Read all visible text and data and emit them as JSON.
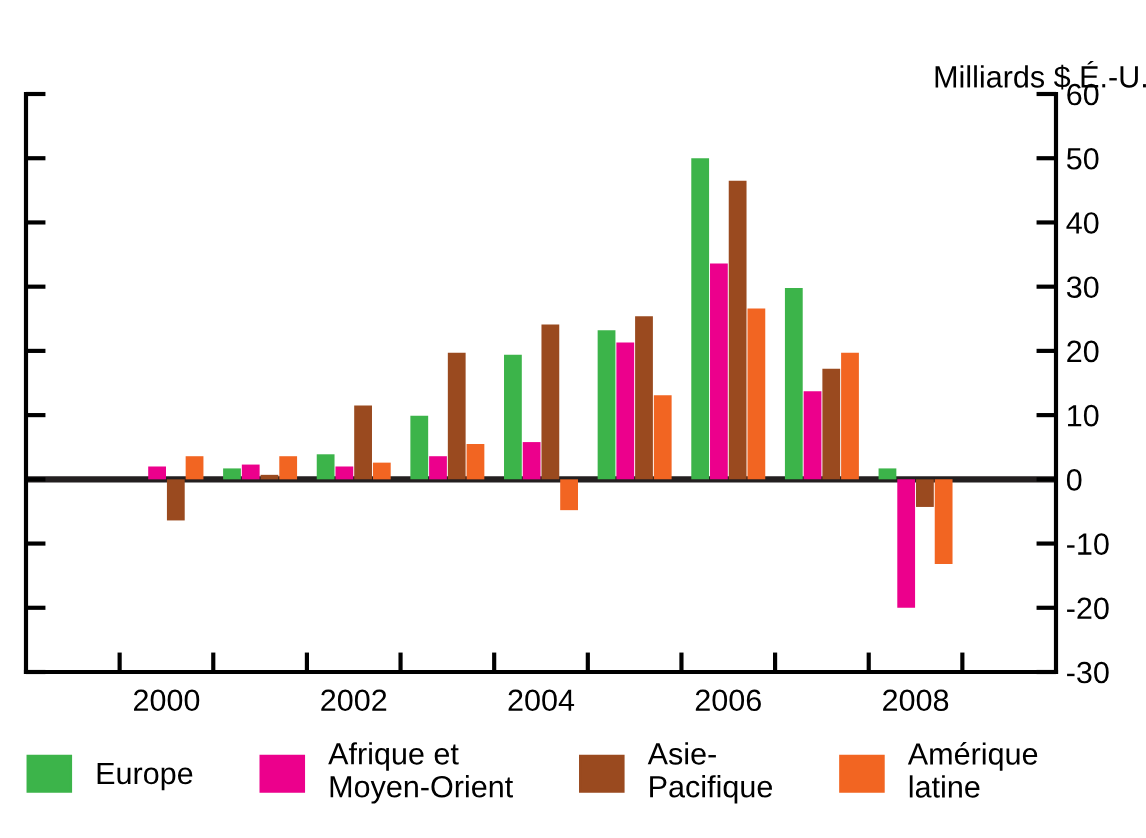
{
  "chart_data": {
    "type": "bar",
    "ylabel": "Milliards $ É.-U.",
    "categories": [
      null,
      "2000",
      null,
      "2002",
      null,
      "2004",
      null,
      "2006",
      null,
      "2008",
      null
    ],
    "series": [
      {
        "name": "Europe",
        "color": "#3cb44a",
        "values": [
          null,
          0,
          1.7,
          3.9,
          9.9,
          19.4,
          23.2,
          50,
          29.8,
          1.7,
          null
        ]
      },
      {
        "name": "Afrique et\nMoyen-Orient",
        "color": "#ec008c",
        "values": [
          null,
          2.0,
          2.3,
          2.0,
          3.6,
          5.8,
          21.3,
          33.6,
          13.7,
          -20.0,
          null
        ]
      },
      {
        "name": "Asie-\nPacifique",
        "color": "#9a4a1f",
        "values": [
          null,
          -6.4,
          0.7,
          11.5,
          19.7,
          24.1,
          25.4,
          46.5,
          17.2,
          -4.3,
          null
        ]
      },
      {
        "name": "Amérique\nlatine",
        "color": "#f26522",
        "values": [
          null,
          3.6,
          3.6,
          2.6,
          5.5,
          -4.8,
          13.1,
          26.6,
          19.7,
          -13.2,
          null
        ]
      }
    ],
    "ylim": [
      -30,
      60
    ],
    "yticks": [
      -30,
      -20,
      -10,
      0,
      10,
      20,
      30,
      40,
      50,
      60
    ],
    "ref_lines": [
      {
        "axis": "y",
        "value": 0,
        "color": "#231f20"
      }
    ],
    "grid": false,
    "legend": "bottom"
  }
}
